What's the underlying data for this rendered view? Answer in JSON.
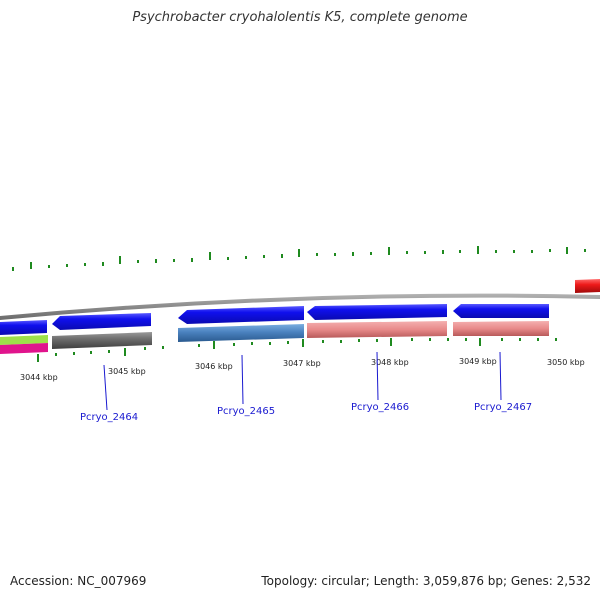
{
  "title": "Psychrobacter cryohalolentis K5, complete genome",
  "footer": {
    "accession": "Accession: NC_007969",
    "summary": "Topology: circular; Length: 3,059,876 bp; Genes: 2,532"
  },
  "colors": {
    "cds_forward": "#1010ee",
    "track_gray": "#6e6e6e",
    "track_steel": "#4a82bf",
    "track_pink": "#e88a8a",
    "track_green": "#9ee04a",
    "track_magenta": "#e0148c",
    "red_feature": "#ee1a1a",
    "tick": "#1f8a1f",
    "backbone": "#8a8a8a",
    "label": "#1a1ad0"
  },
  "kbp_labels": [
    "3044 kbp",
    "3045 kbp",
    "3046 kbp",
    "3047 kbp",
    "3048 kbp",
    "3049 kbp",
    "3050 kbp"
  ],
  "gene_labels": [
    "Pcryo_2464",
    "Pcryo_2465",
    "Pcryo_2466",
    "Pcryo_2467"
  ]
}
